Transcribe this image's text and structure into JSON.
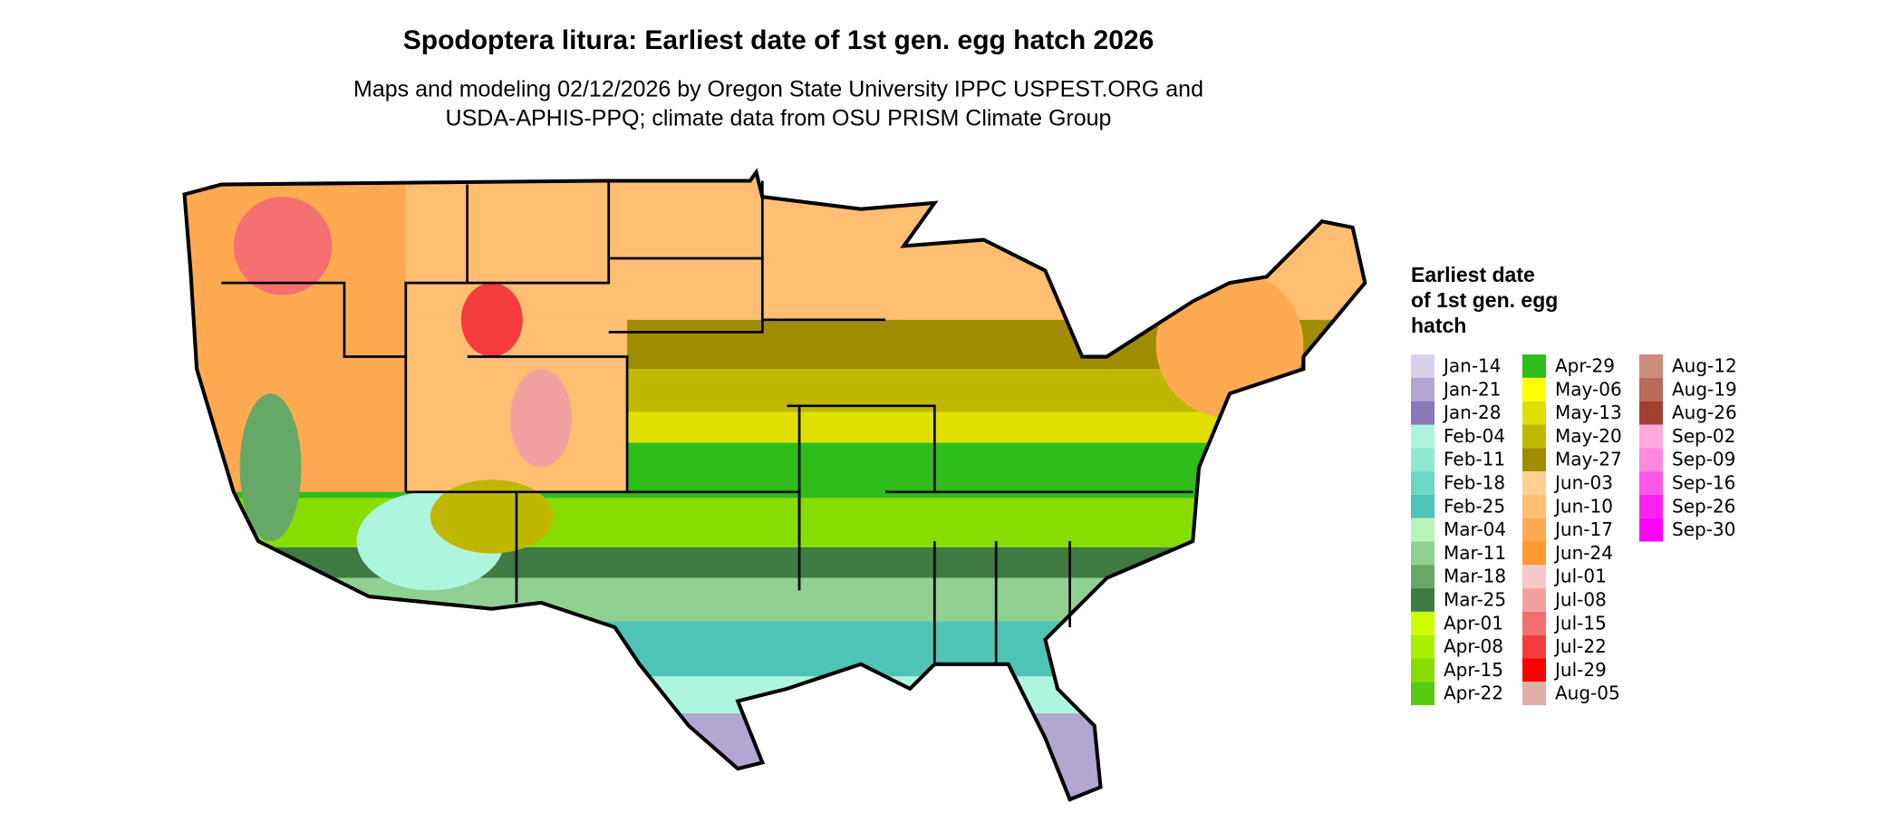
{
  "title": "Spodoptera litura: Earliest date of 1st gen. egg hatch 2026",
  "subtitle": [
    "Maps and modeling 02/12/2026 by Oregon State University IPPC USPEST.ORG and",
    "USDA-APHIS-PPQ; climate data from OSU PRISM Climate Group"
  ],
  "legend": {
    "title": [
      "Earliest date",
      "of 1st gen. egg",
      "hatch"
    ],
    "items": [
      {
        "label": "Jan-14",
        "color": "#d9d0ea"
      },
      {
        "label": "Jan-21",
        "color": "#b3a6d0"
      },
      {
        "label": "Jan-28",
        "color": "#8a78b8"
      },
      {
        "label": "Feb-04",
        "color": "#aef5e0"
      },
      {
        "label": "Feb-11",
        "color": "#8ee8d0"
      },
      {
        "label": "Feb-18",
        "color": "#6dd8c4"
      },
      {
        "label": "Feb-25",
        "color": "#4fc4b4"
      },
      {
        "label": "Mar-04",
        "color": "#b8f5b8"
      },
      {
        "label": "Mar-11",
        "color": "#90d090"
      },
      {
        "label": "Mar-18",
        "color": "#66a866"
      },
      {
        "label": "Mar-25",
        "color": "#3e7a42"
      },
      {
        "label": "Apr-01",
        "color": "#ccff00"
      },
      {
        "label": "Apr-08",
        "color": "#aaee00"
      },
      {
        "label": "Apr-15",
        "color": "#88dd00"
      },
      {
        "label": "Apr-22",
        "color": "#55cc11"
      },
      {
        "label": "Apr-29",
        "color": "#2ebd1a"
      },
      {
        "label": "May-06",
        "color": "#ffff00"
      },
      {
        "label": "May-13",
        "color": "#e0e000"
      },
      {
        "label": "May-20",
        "color": "#c0b800"
      },
      {
        "label": "May-27",
        "color": "#a08c00"
      },
      {
        "label": "Jun-03",
        "color": "#ffd090"
      },
      {
        "label": "Jun-10",
        "color": "#ffbe70"
      },
      {
        "label": "Jun-17",
        "color": "#ffaa50"
      },
      {
        "label": "Jun-24",
        "color": "#ff9830"
      },
      {
        "label": "Jul-01",
        "color": "#f4c8c8"
      },
      {
        "label": "Jul-08",
        "color": "#f4a0a0"
      },
      {
        "label": "Jul-15",
        "color": "#f47070"
      },
      {
        "label": "Jul-22",
        "color": "#f43c3c"
      },
      {
        "label": "Jul-29",
        "color": "#ff0000"
      },
      {
        "label": "Aug-05",
        "color": "#e0b0a8"
      },
      {
        "label": "Aug-12",
        "color": "#cc8c7c"
      },
      {
        "label": "Aug-19",
        "color": "#b86a58"
      },
      {
        "label": "Aug-26",
        "color": "#a04030"
      },
      {
        "label": "Sep-02",
        "color": "#ffaadd"
      },
      {
        "label": "Sep-09",
        "color": "#ff88e0"
      },
      {
        "label": "Sep-16",
        "color": "#ff55e8"
      },
      {
        "label": "Sep-26",
        "color": "#ff22ee"
      },
      {
        "label": "Sep-30",
        "color": "#ff00ff"
      }
    ]
  }
}
